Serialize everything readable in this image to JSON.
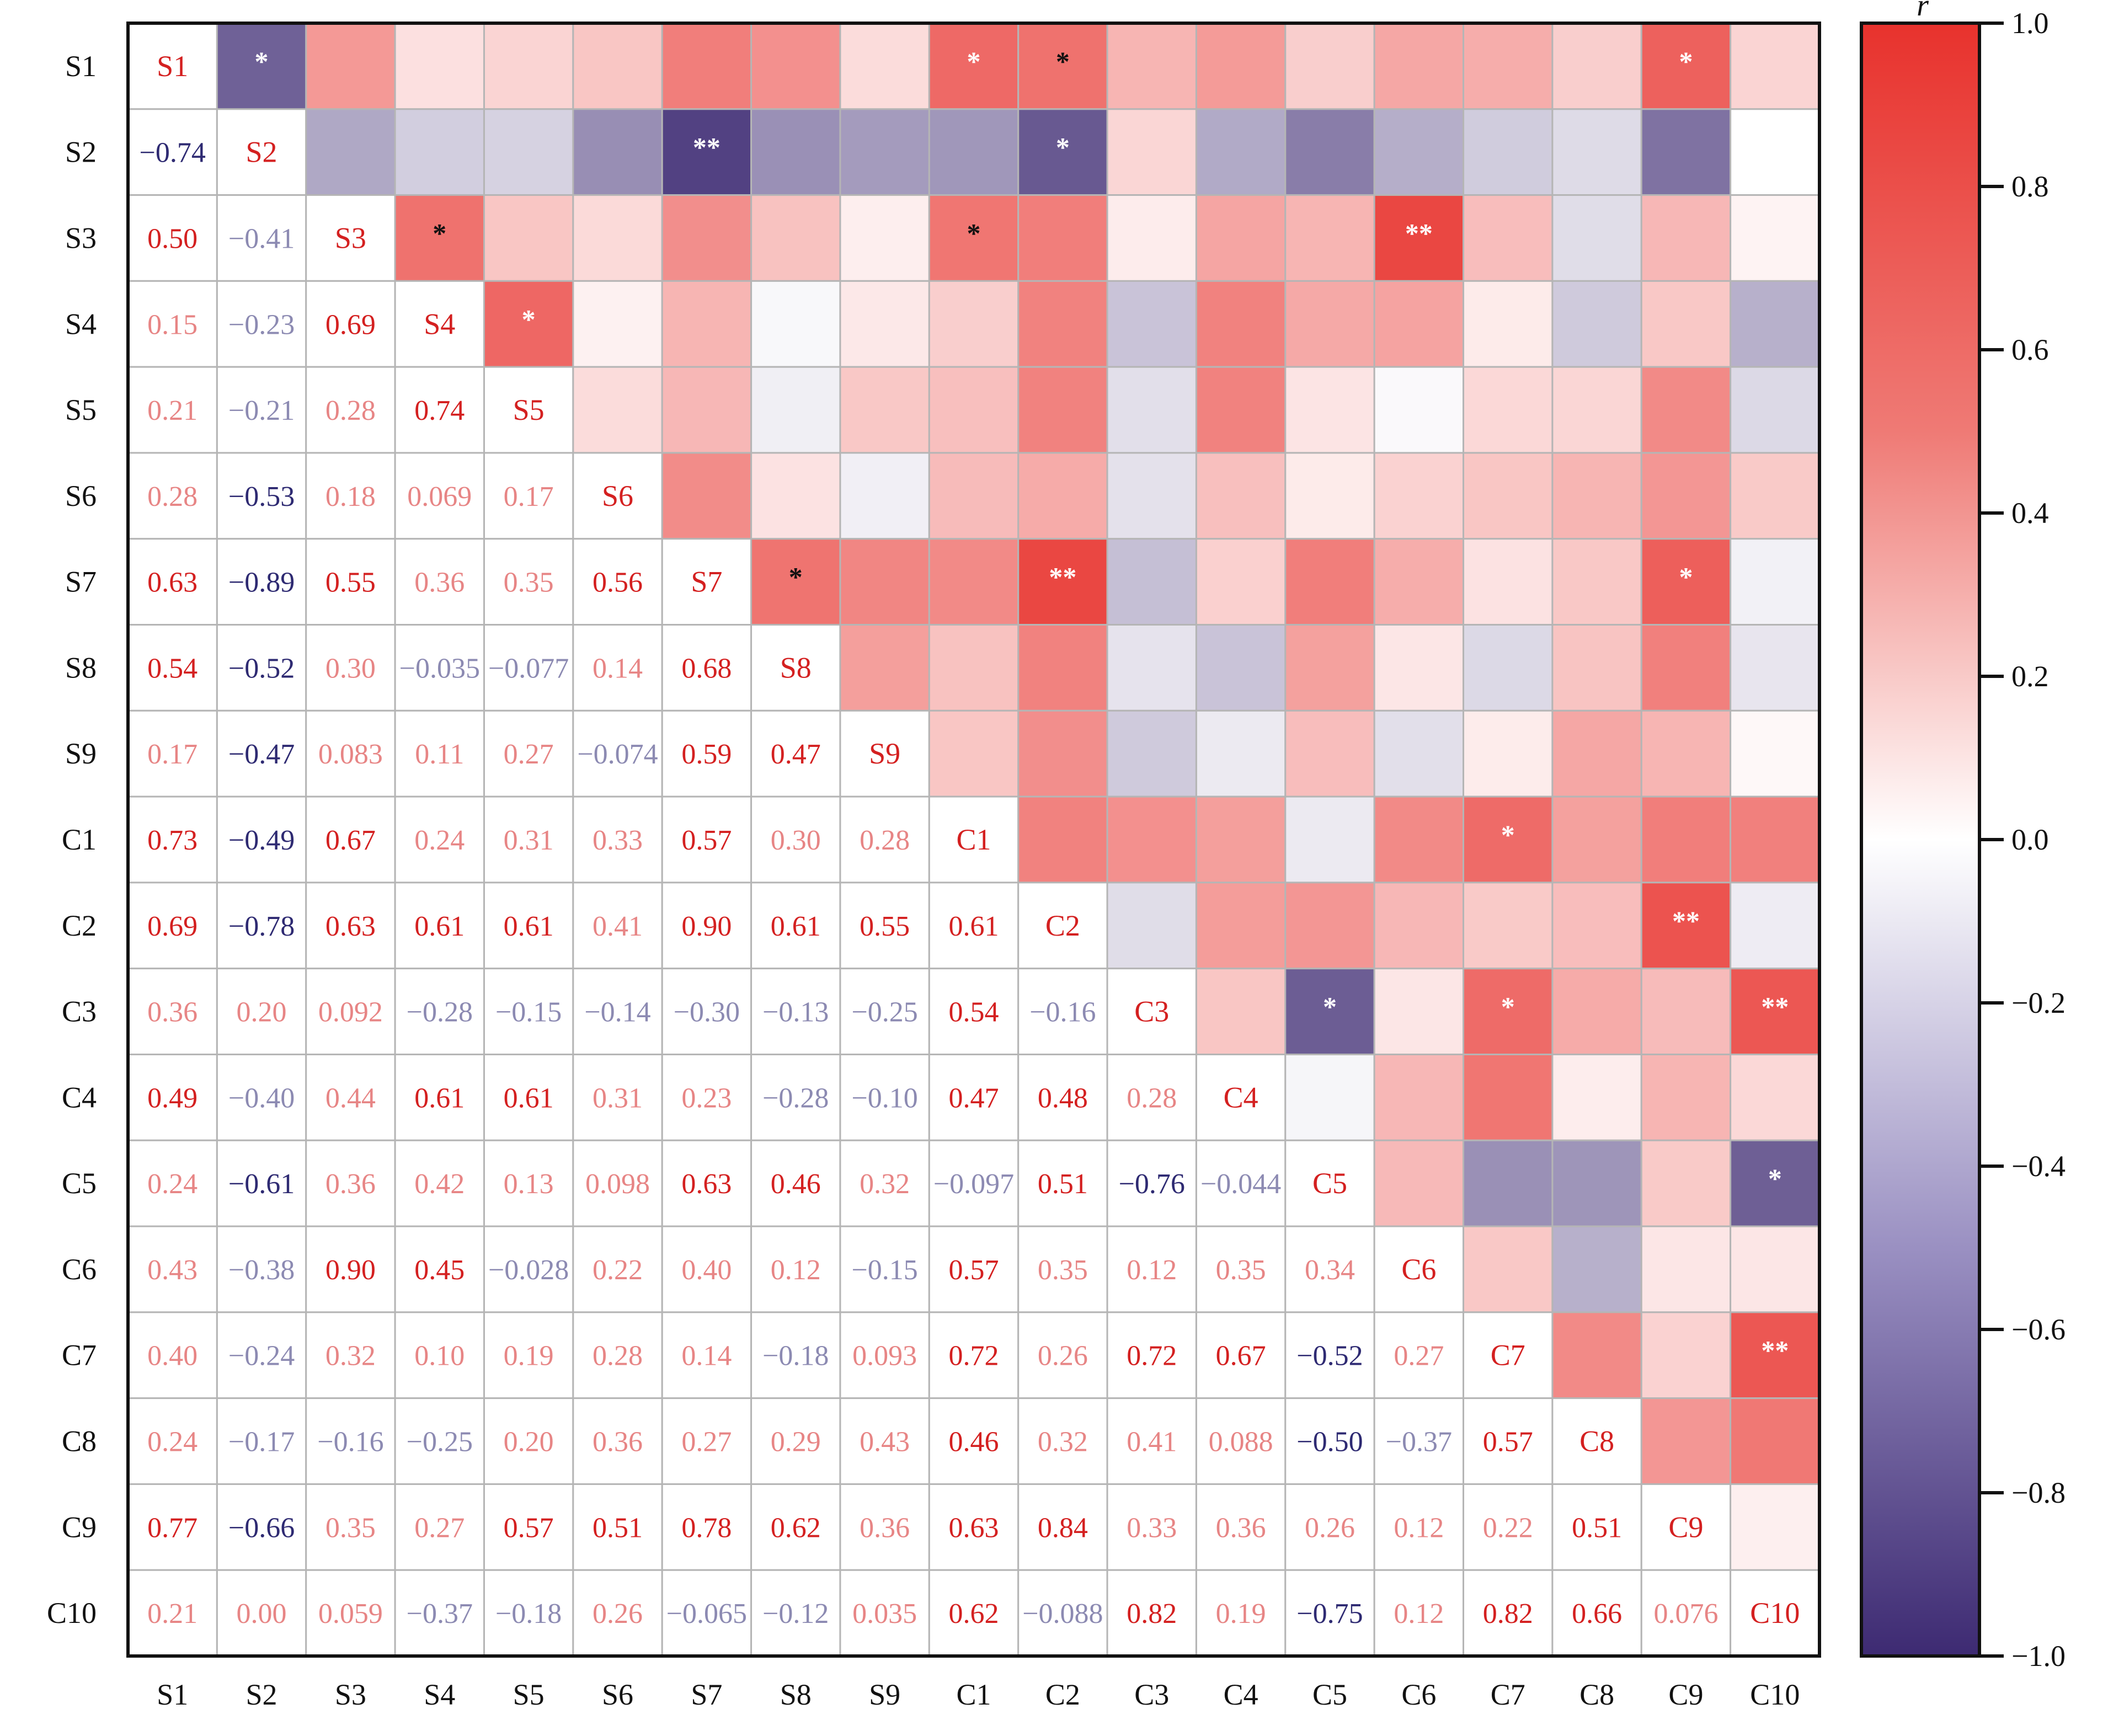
{
  "chart_data": {
    "type": "heatmap",
    "labels": [
      "S1",
      "S2",
      "S3",
      "S4",
      "S5",
      "S6",
      "S7",
      "S8",
      "S9",
      "C1",
      "C2",
      "C3",
      "C4",
      "C5",
      "C6",
      "C7",
      "C8",
      "C9",
      "C10"
    ],
    "lower_text": [
      [],
      [
        "−0.74"
      ],
      [
        "0.50",
        "−0.41"
      ],
      [
        "0.15",
        "−0.23",
        "0.69"
      ],
      [
        "0.21",
        "−0.21",
        "0.28",
        "0.74"
      ],
      [
        "0.28",
        "−0.53",
        "0.18",
        "0.069",
        "0.17"
      ],
      [
        "0.63",
        "−0.89",
        "0.55",
        "0.36",
        "0.35",
        "0.56"
      ],
      [
        "0.54",
        "−0.52",
        "0.30",
        "−0.035",
        "−0.077",
        "0.14",
        "0.68"
      ],
      [
        "0.17",
        "−0.47",
        "0.083",
        "0.11",
        "0.27",
        "−0.074",
        "0.59",
        "0.47"
      ],
      [
        "0.73",
        "−0.49",
        "0.67",
        "0.24",
        "0.31",
        "0.33",
        "0.57",
        "0.30",
        "0.28"
      ],
      [
        "0.69",
        "−0.78",
        "0.63",
        "0.61",
        "0.61",
        "0.41",
        "0.90",
        "0.61",
        "0.55",
        "0.61"
      ],
      [
        "0.36",
        "0.20",
        "0.092",
        "−0.28",
        "−0.15",
        "−0.14",
        "−0.30",
        "−0.13",
        "−0.25",
        "0.54",
        "−0.16"
      ],
      [
        "0.49",
        "−0.40",
        "0.44",
        "0.61",
        "0.61",
        "0.31",
        "0.23",
        "−0.28",
        "−0.10",
        "0.47",
        "0.48",
        "0.28"
      ],
      [
        "0.24",
        "−0.61",
        "0.36",
        "0.42",
        "0.13",
        "0.098",
        "0.63",
        "0.46",
        "0.32",
        "−0.097",
        "0.51",
        "−0.76",
        "−0.044"
      ],
      [
        "0.43",
        "−0.38",
        "0.90",
        "0.45",
        "−0.028",
        "0.22",
        "0.40",
        "0.12",
        "−0.15",
        "0.57",
        "0.35",
        "0.12",
        "0.35",
        "0.34"
      ],
      [
        "0.40",
        "−0.24",
        "0.32",
        "0.10",
        "0.19",
        "0.28",
        "0.14",
        "−0.18",
        "0.093",
        "0.72",
        "0.26",
        "0.72",
        "0.67",
        "−0.52",
        "0.27"
      ],
      [
        "0.24",
        "−0.17",
        "−0.16",
        "−0.25",
        "0.20",
        "0.36",
        "0.27",
        "0.29",
        "0.43",
        "0.46",
        "0.32",
        "0.41",
        "0.088",
        "−0.50",
        "−0.37",
        "0.57"
      ],
      [
        "0.77",
        "−0.66",
        "0.35",
        "0.27",
        "0.57",
        "0.51",
        "0.78",
        "0.62",
        "0.36",
        "0.63",
        "0.84",
        "0.33",
        "0.36",
        "0.26",
        "0.12",
        "0.22",
        "0.51"
      ],
      [
        "0.21",
        "0.00",
        "0.059",
        "−0.37",
        "−0.18",
        "0.26",
        "−0.065",
        "−0.12",
        "0.035",
        "0.62",
        "−0.088",
        "0.82",
        "0.19",
        "−0.75",
        "0.12",
        "0.82",
        "0.66",
        "0.076"
      ]
    ],
    "significance": {
      "0,1": "*",
      "0,10": "*",
      "0,9": "*",
      "0,17": "*",
      "1,6": "**",
      "1,10": "*",
      "2,3": "*",
      "2,9": "*",
      "2,14": "**",
      "3,4": "*",
      "6,7": "*",
      "6,10": "**",
      "6,17": "*",
      "9,15": "*",
      "10,17": "**",
      "11,13": "*",
      "11,15": "*",
      "11,18": "**",
      "13,18": "*",
      "15,18": "**"
    },
    "colorbar": {
      "title": "r",
      "range": [
        -1.0,
        1.0
      ],
      "ticks": [
        "1.0",
        "0.8",
        "0.6",
        "0.4",
        "0.2",
        "0.0",
        "−0.2",
        "−0.4",
        "−0.6",
        "−0.8",
        "−1.0"
      ]
    },
    "colors": {
      "positive": "#e8322d",
      "zero": "#ffffff",
      "negative": "#3d2a72",
      "grid": "#b5b5b5",
      "frame": "#111111",
      "positive_text": "#d42020",
      "negative_text": "#2e2a72"
    }
  }
}
